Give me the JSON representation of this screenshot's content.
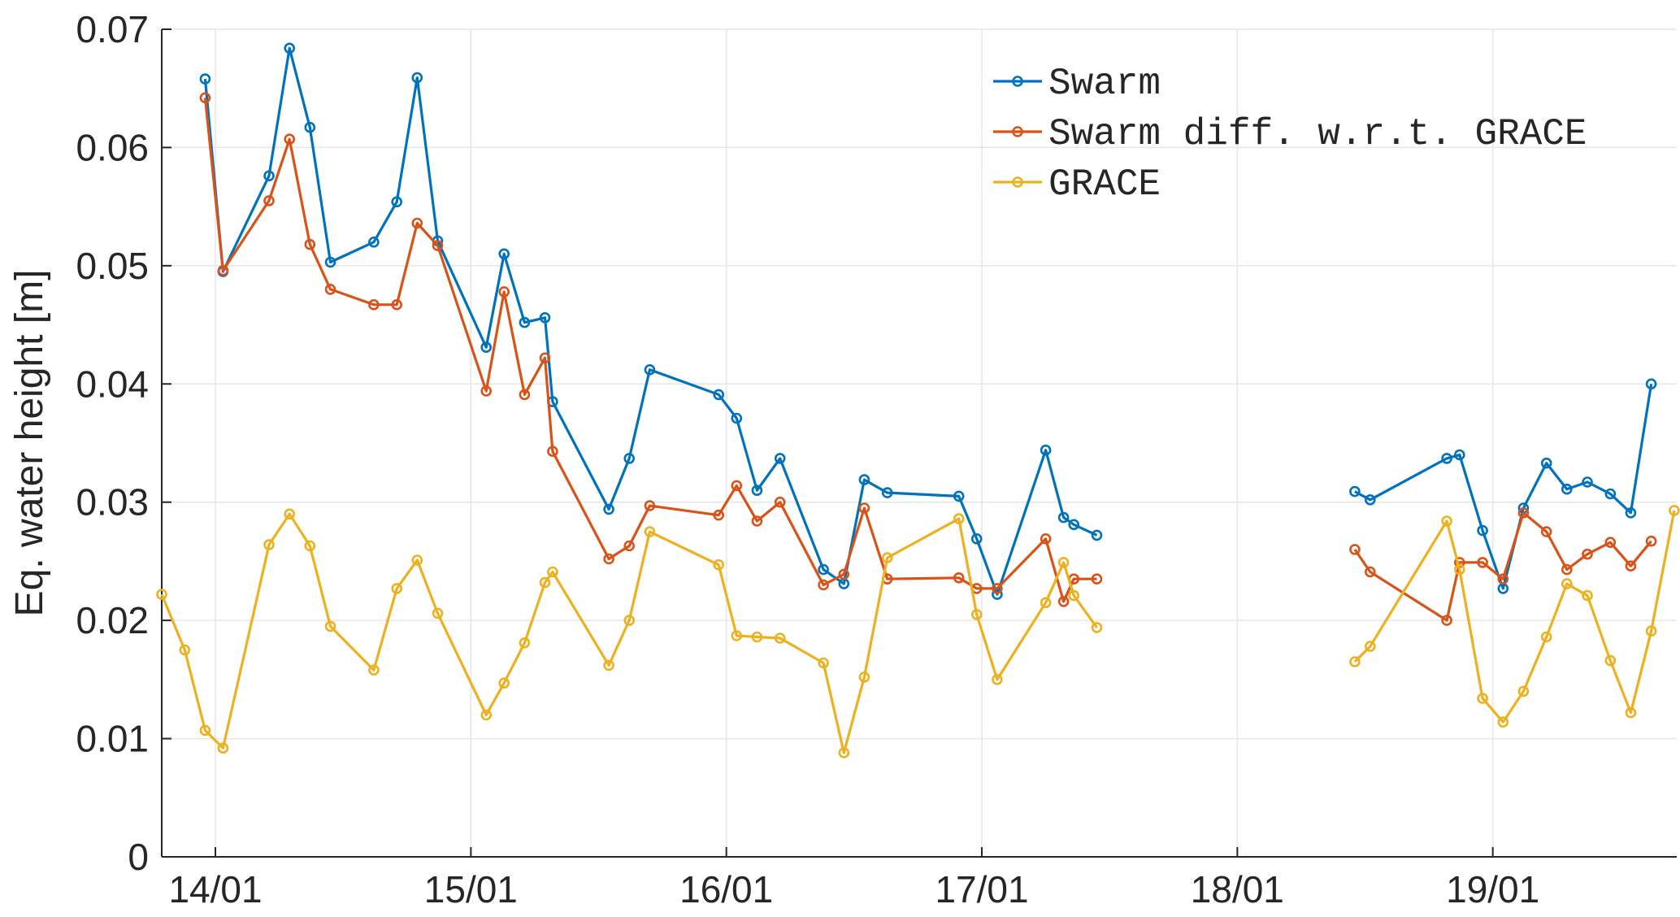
{
  "chart_data": {
    "type": "line",
    "title": "",
    "xlabel": "",
    "ylabel": "Eq. water height [m]",
    "xlim": [
      13.79,
      19.72
    ],
    "ylim": [
      0,
      0.07
    ],
    "xtick_values": [
      14,
      15,
      16,
      17,
      18,
      19
    ],
    "xtick_labels": [
      "14/01",
      "15/01",
      "16/01",
      "17/01",
      "18/01",
      "19/01"
    ],
    "ytick_values": [
      0,
      0.01,
      0.02,
      0.03,
      0.04,
      0.05,
      0.06,
      0.07
    ],
    "ytick_labels": [
      "0",
      "0.01",
      "0.02",
      "0.03",
      "0.04",
      "0.05",
      "0.06",
      "0.07"
    ],
    "grid": true,
    "legend_position": "top-right",
    "series": [
      {
        "name": "Swarm",
        "color": "#0072BD",
        "segments": [
          [
            [
              13.96,
              0.0658
            ],
            [
              14.03,
              0.0495
            ],
            [
              14.21,
              0.0576
            ],
            [
              14.29,
              0.0684
            ],
            [
              14.37,
              0.0617
            ],
            [
              14.45,
              0.0503
            ],
            [
              14.62,
              0.052
            ],
            [
              14.71,
              0.0554
            ],
            [
              14.79,
              0.0659
            ],
            [
              14.87,
              0.0521
            ],
            [
              15.06,
              0.0431
            ],
            [
              15.13,
              0.051
            ],
            [
              15.21,
              0.0452
            ],
            [
              15.29,
              0.0456
            ],
            [
              15.32,
              0.0385
            ],
            [
              15.54,
              0.0294
            ],
            [
              15.62,
              0.0337
            ],
            [
              15.7,
              0.0412
            ],
            [
              15.97,
              0.0391
            ],
            [
              16.04,
              0.0371
            ],
            [
              16.12,
              0.031
            ],
            [
              16.21,
              0.0337
            ],
            [
              16.38,
              0.0243
            ],
            [
              16.46,
              0.0231
            ],
            [
              16.54,
              0.0319
            ],
            [
              16.63,
              0.0308
            ],
            [
              16.91,
              0.0305
            ],
            [
              16.98,
              0.0269
            ],
            [
              17.06,
              0.0222
            ],
            [
              17.25,
              0.0344
            ],
            [
              17.32,
              0.0287
            ],
            [
              17.36,
              0.0281
            ],
            [
              17.45,
              0.0272
            ]
          ],
          [
            [
              18.46,
              0.0309
            ],
            [
              18.52,
              0.0302
            ],
            [
              18.82,
              0.0337
            ],
            [
              18.87,
              0.034
            ],
            [
              18.96,
              0.0276
            ],
            [
              19.04,
              0.0227
            ],
            [
              19.12,
              0.0295
            ],
            [
              19.21,
              0.0333
            ],
            [
              19.29,
              0.0311
            ],
            [
              19.37,
              0.0317
            ],
            [
              19.46,
              0.0307
            ],
            [
              19.54,
              0.0291
            ],
            [
              19.62,
              0.04
            ]
          ]
        ]
      },
      {
        "name": "Swarm diff. w.r.t. GRACE",
        "color": "#D95319",
        "segments": [
          [
            [
              13.96,
              0.0642
            ],
            [
              14.03,
              0.0496
            ],
            [
              14.21,
              0.0555
            ],
            [
              14.29,
              0.0607
            ],
            [
              14.37,
              0.0518
            ],
            [
              14.45,
              0.048
            ],
            [
              14.62,
              0.0467
            ],
            [
              14.71,
              0.0467
            ],
            [
              14.79,
              0.0536
            ],
            [
              14.87,
              0.0517
            ],
            [
              15.06,
              0.0394
            ],
            [
              15.13,
              0.0478
            ],
            [
              15.21,
              0.0391
            ],
            [
              15.29,
              0.0422
            ],
            [
              15.32,
              0.0343
            ],
            [
              15.54,
              0.0252
            ],
            [
              15.62,
              0.0263
            ],
            [
              15.7,
              0.0297
            ],
            [
              15.97,
              0.0289
            ],
            [
              16.04,
              0.0314
            ],
            [
              16.12,
              0.0284
            ],
            [
              16.21,
              0.03
            ],
            [
              16.38,
              0.023
            ],
            [
              16.46,
              0.0239
            ],
            [
              16.54,
              0.0295
            ],
            [
              16.63,
              0.0235
            ],
            [
              16.91,
              0.0236
            ],
            [
              16.98,
              0.0227
            ],
            [
              17.06,
              0.0227
            ],
            [
              17.25,
              0.0269
            ],
            [
              17.32,
              0.0216
            ],
            [
              17.36,
              0.0235
            ],
            [
              17.45,
              0.0235
            ]
          ],
          [
            [
              18.46,
              0.026
            ],
            [
              18.52,
              0.0241
            ],
            [
              18.82,
              0.02
            ],
            [
              18.87,
              0.0249
            ],
            [
              18.96,
              0.0249
            ],
            [
              19.04,
              0.0235
            ],
            [
              19.12,
              0.0291
            ],
            [
              19.21,
              0.0275
            ],
            [
              19.29,
              0.0243
            ],
            [
              19.37,
              0.0256
            ],
            [
              19.46,
              0.0266
            ],
            [
              19.54,
              0.0246
            ],
            [
              19.62,
              0.0267
            ]
          ]
        ]
      },
      {
        "name": "GRACE",
        "color": "#EDB120",
        "segments": [
          [
            [
              13.79,
              0.0222
            ],
            [
              13.88,
              0.0175
            ],
            [
              13.96,
              0.0107
            ],
            [
              14.03,
              0.0092
            ],
            [
              14.21,
              0.0264
            ],
            [
              14.29,
              0.029
            ],
            [
              14.37,
              0.0263
            ],
            [
              14.45,
              0.0195
            ],
            [
              14.62,
              0.0158
            ],
            [
              14.71,
              0.0227
            ],
            [
              14.79,
              0.0251
            ],
            [
              14.87,
              0.0206
            ],
            [
              15.06,
              0.012
            ],
            [
              15.13,
              0.0147
            ],
            [
              15.21,
              0.0181
            ],
            [
              15.29,
              0.0232
            ],
            [
              15.32,
              0.0241
            ],
            [
              15.54,
              0.0162
            ],
            [
              15.62,
              0.02
            ],
            [
              15.7,
              0.0275
            ],
            [
              15.97,
              0.0247
            ],
            [
              16.04,
              0.0187
            ],
            [
              16.12,
              0.0186
            ],
            [
              16.21,
              0.0185
            ],
            [
              16.38,
              0.0164
            ],
            [
              16.46,
              0.0088
            ],
            [
              16.54,
              0.0152
            ],
            [
              16.63,
              0.0253
            ],
            [
              16.91,
              0.0286
            ],
            [
              16.98,
              0.0205
            ],
            [
              17.06,
              0.015
            ],
            [
              17.25,
              0.0215
            ],
            [
              17.32,
              0.0249
            ],
            [
              17.36,
              0.0221
            ],
            [
              17.45,
              0.0194
            ]
          ],
          [
            [
              18.46,
              0.0165
            ],
            [
              18.52,
              0.0178
            ],
            [
              18.82,
              0.0284
            ],
            [
              18.87,
              0.0243
            ],
            [
              18.96,
              0.0134
            ],
            [
              19.04,
              0.0114
            ],
            [
              19.12,
              0.014
            ],
            [
              19.21,
              0.0186
            ],
            [
              19.29,
              0.0231
            ],
            [
              19.37,
              0.0221
            ],
            [
              19.46,
              0.0166
            ],
            [
              19.54,
              0.0122
            ],
            [
              19.62,
              0.0191
            ],
            [
              19.71,
              0.0293
            ]
          ]
        ]
      }
    ]
  }
}
